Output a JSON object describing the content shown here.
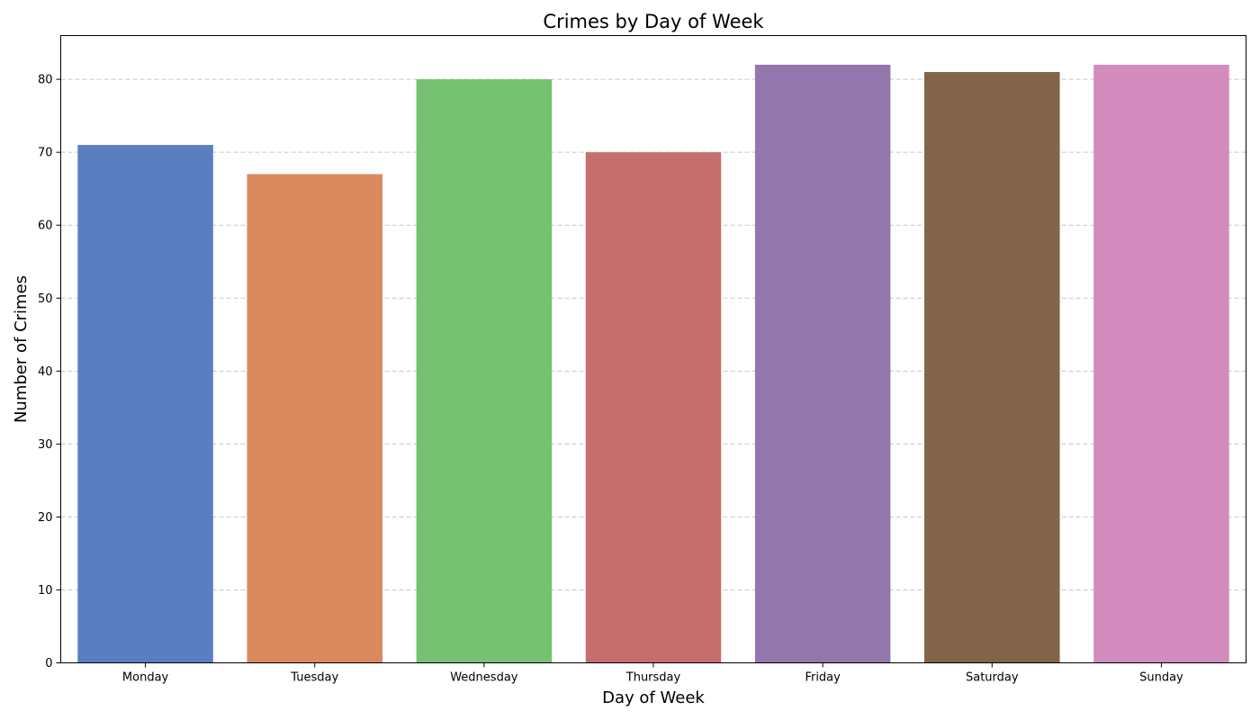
{
  "chart_data": {
    "type": "bar",
    "title": "Crimes by Day of Week",
    "xlabel": "Day of Week",
    "ylabel": "Number of Crimes",
    "categories": [
      "Monday",
      "Tuesday",
      "Wednesday",
      "Thursday",
      "Friday",
      "Saturday",
      "Sunday"
    ],
    "values": [
      71,
      67,
      80,
      70,
      82,
      81,
      82
    ],
    "colors": [
      "#5b7ec1",
      "#da8a5f",
      "#76c172",
      "#c56f6d",
      "#9376ac",
      "#816449",
      "#d38abc"
    ],
    "ylim": [
      0,
      86
    ],
    "yticks": [
      0,
      10,
      20,
      30,
      40,
      50,
      60,
      70,
      80
    ],
    "grid": "y-dashed",
    "legend": "none"
  }
}
